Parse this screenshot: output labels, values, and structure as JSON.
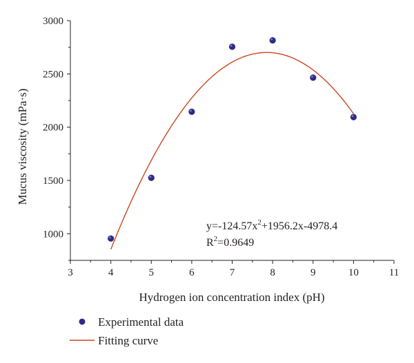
{
  "chart_data": {
    "type": "scatter",
    "xlabel": "Hydrogen ion concentration index (pH)",
    "ylabel": "Mucus viscosity (mPa·s)",
    "xlim": [
      3,
      11
    ],
    "ylim": [
      750,
      3000
    ],
    "x_ticks": [
      "3",
      "4",
      "5",
      "6",
      "7",
      "8",
      "9",
      "10",
      "11"
    ],
    "y_ticks": [
      "1000",
      "1500",
      "2000",
      "2500",
      "3000"
    ],
    "grid": false,
    "legend_position": "below the plot, left",
    "series": [
      {
        "name": "Experimental data",
        "kind": "scatter",
        "color": "#2e2a86",
        "x": [
          4,
          5,
          6,
          7,
          8,
          9,
          10
        ],
        "y": [
          955,
          1525,
          2145,
          2755,
          2815,
          2465,
          2095
        ]
      },
      {
        "name": "Fitting curve",
        "kind": "line",
        "color": "#c8461e",
        "equation": {
          "a": -124.57,
          "b": 1956.2,
          "c": -4978.4
        },
        "x_range": [
          4,
          10
        ]
      }
    ],
    "annotations": {
      "equation": "y=-124.57x",
      "equation_sup": "2",
      "equation_rest": "+1956.2x-4978.4",
      "r2_prefix": "R",
      "r2_sup": "2",
      "r2_value": "=0.9649"
    }
  }
}
